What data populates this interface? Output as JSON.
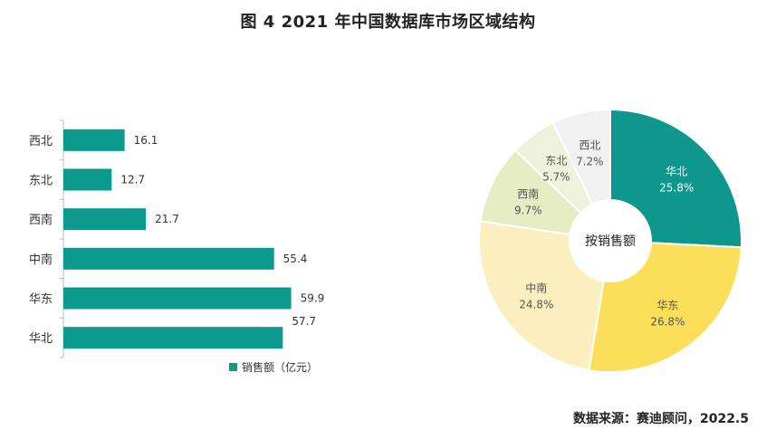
{
  "title": "图 4   2021 年中国数据库市场区域结构",
  "source": "数据来源：赛迪顾问，2022.5",
  "colors": {
    "bar": "#0d9a8e",
    "axis": "#bbbbbb",
    "pie_slices": [
      "#0e978d",
      "#fbdf5b",
      "#fbefc0",
      "#e6ecc4",
      "#eef2dc",
      "#f1f1f1"
    ],
    "pie_text_dark": "#ffffff",
    "pie_text_light": "#555555"
  },
  "chart_data": [
    {
      "type": "bar",
      "orientation": "horizontal",
      "categories": [
        "西北",
        "东北",
        "西南",
        "中南",
        "华东",
        "华北"
      ],
      "values": [
        16.1,
        12.7,
        21.7,
        55.4,
        59.9,
        57.7
      ],
      "value_labels": [
        "16.1",
        "12.7",
        "21.7",
        "55.4",
        "59.9",
        "57.7"
      ],
      "legend": "销售额（亿元）",
      "xlim": [
        0,
        70
      ],
      "legend_position": "bottom"
    },
    {
      "type": "pie",
      "donut": true,
      "center_label": "按销售额",
      "slices": [
        {
          "name": "华北",
          "value": 25.8,
          "label": "25.8%"
        },
        {
          "name": "华东",
          "value": 26.8,
          "label": "26.8%"
        },
        {
          "name": "中南",
          "value": 24.8,
          "label": "24.8%"
        },
        {
          "name": "西南",
          "value": 9.7,
          "label": "9.7%"
        },
        {
          "name": "东北",
          "value": 5.7,
          "label": "5.7%"
        },
        {
          "name": "西北",
          "value": 7.2,
          "label": "7.2%"
        }
      ]
    }
  ]
}
